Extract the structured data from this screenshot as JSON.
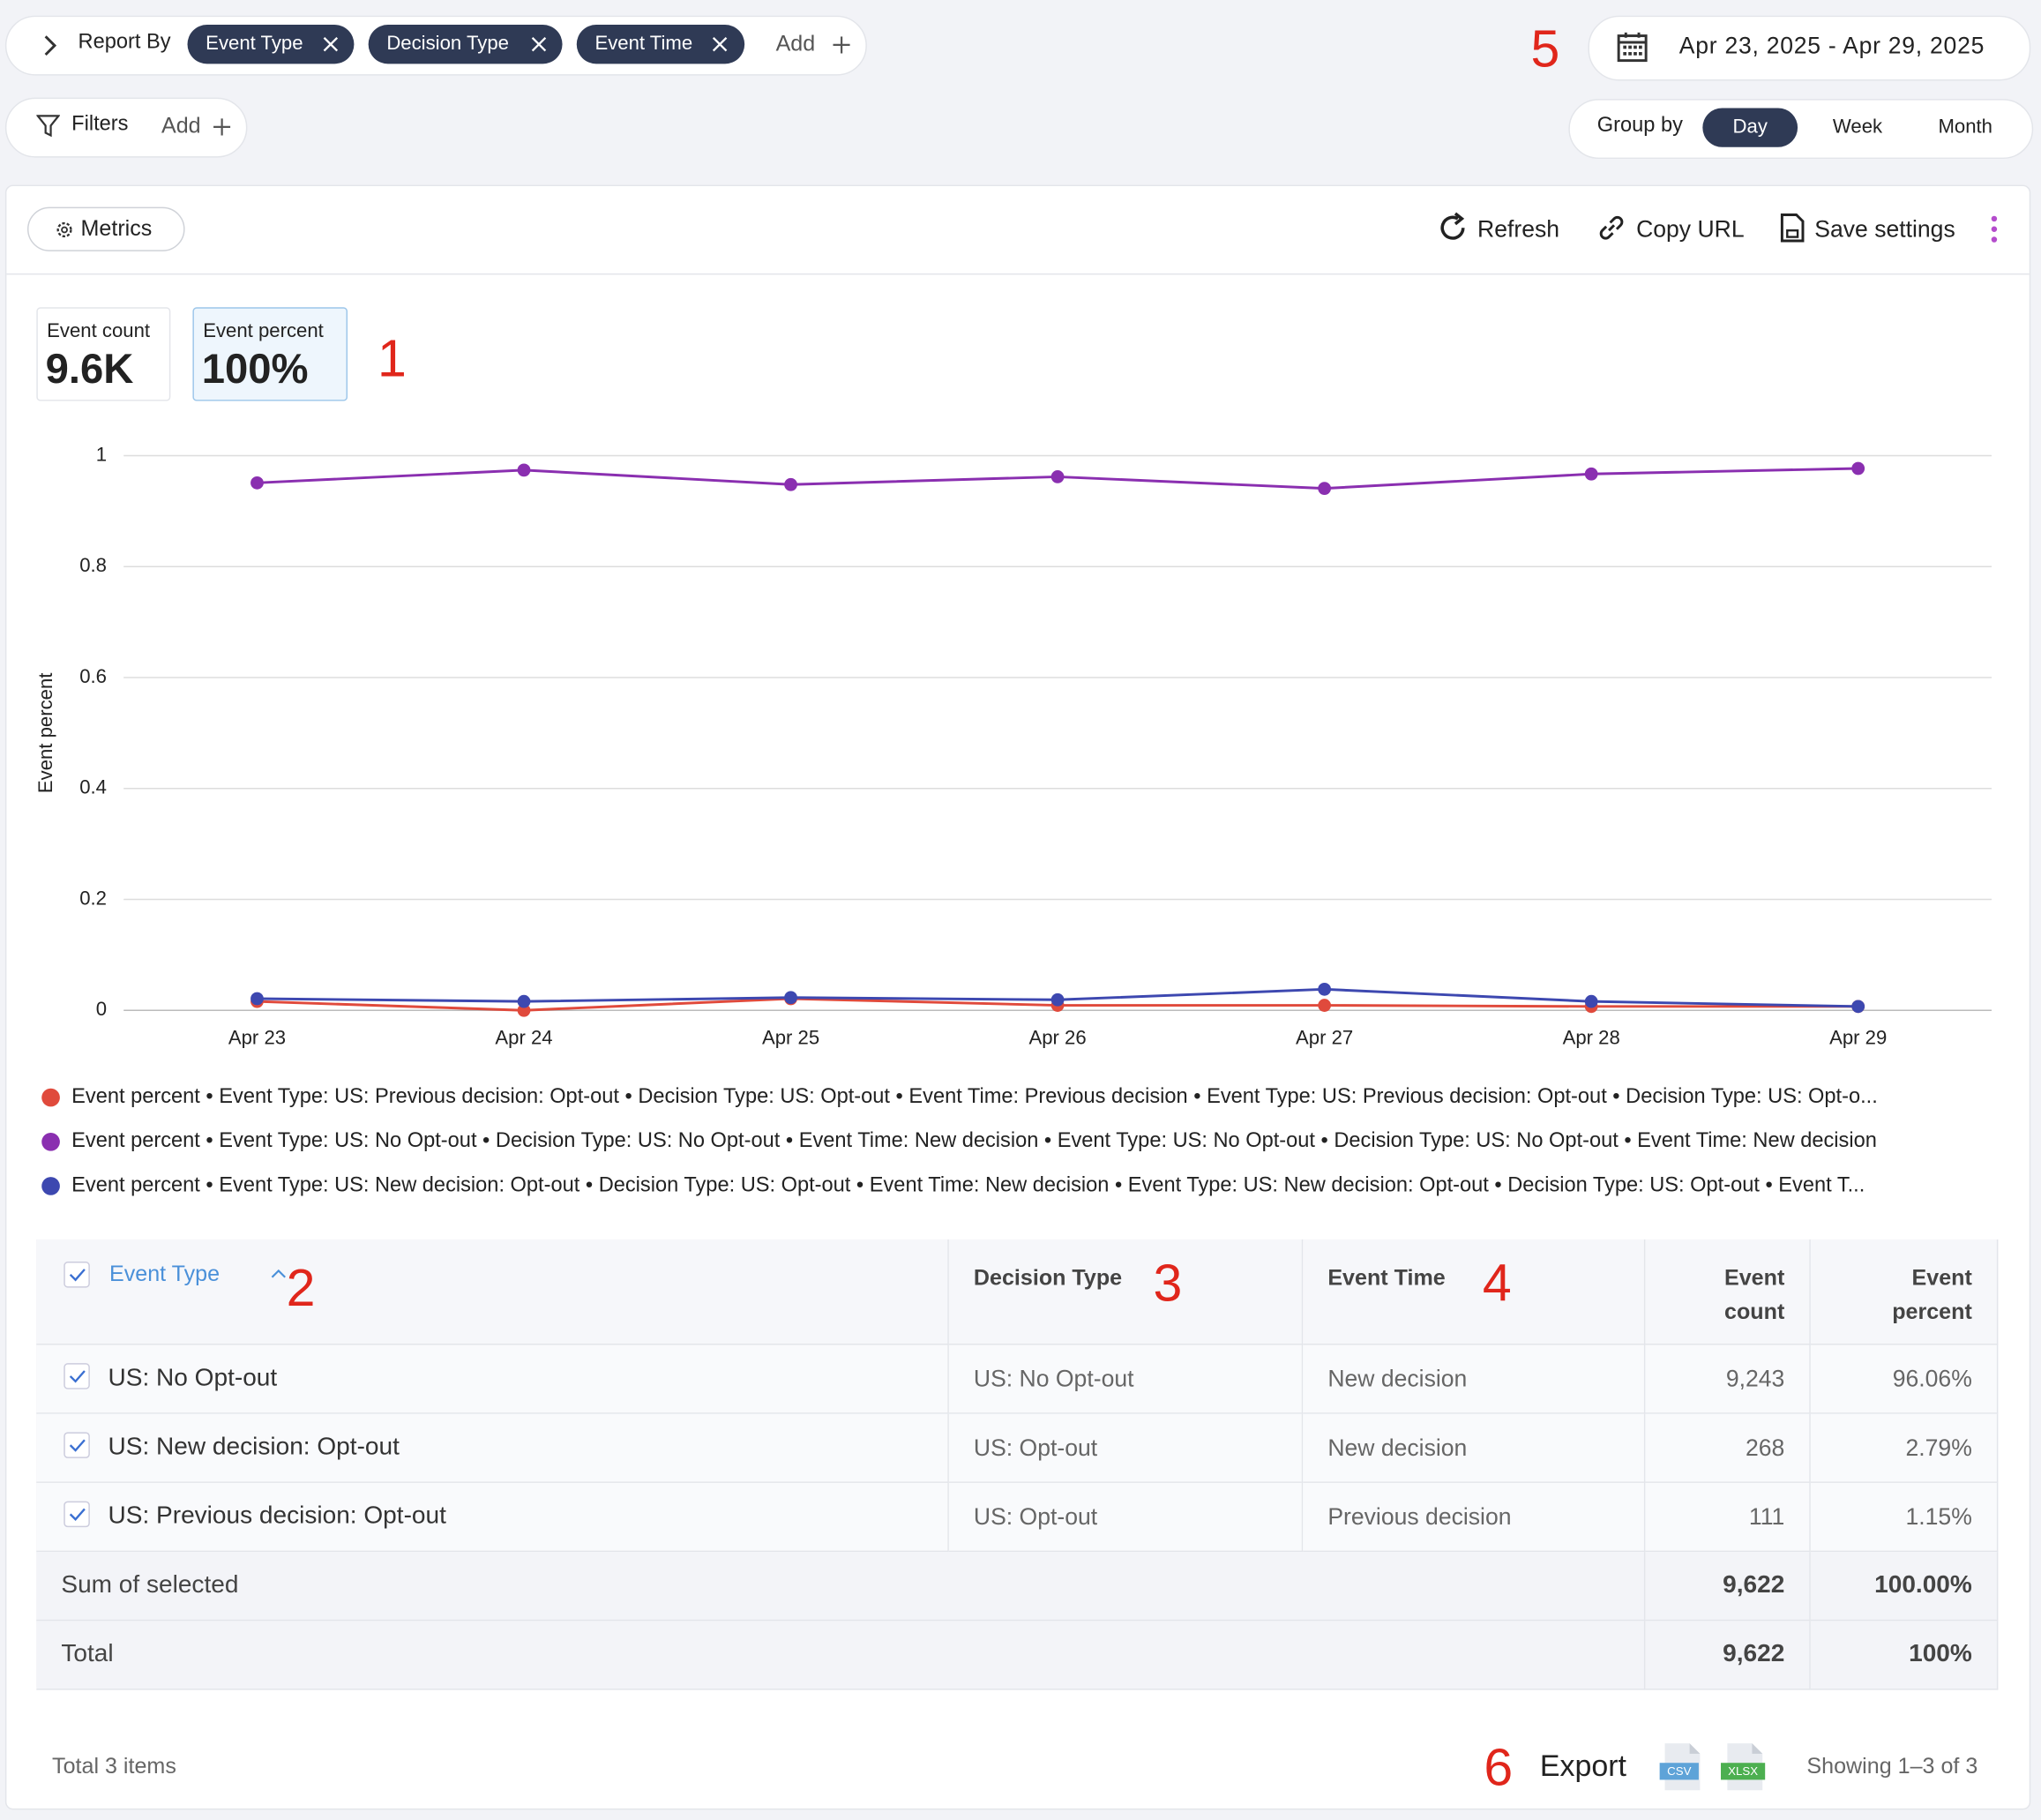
{
  "header": {
    "report_by": "Report By",
    "report_chips": [
      "Event Type",
      "Decision Type",
      "Event Time"
    ],
    "report_add": "Add",
    "date_range": "Apr 23, 2025 - Apr 29, 2025",
    "filters": "Filters",
    "filters_add": "Add",
    "group_by": "Group by",
    "group_options": [
      "Day",
      "Week",
      "Month"
    ]
  },
  "toolbar": {
    "metrics": "Metrics",
    "refresh": "Refresh",
    "copy_url": "Copy URL",
    "save_settings": "Save settings"
  },
  "kpis": [
    {
      "label": "Event count",
      "value": "9.6K"
    },
    {
      "label": "Event percent",
      "value": "100%"
    }
  ],
  "chart_data": {
    "type": "line",
    "y_label": "Event percent",
    "categories": [
      "Apr 23",
      "Apr 24",
      "Apr 25",
      "Apr 26",
      "Apr 27",
      "Apr 28",
      "Apr 29"
    ],
    "ylim": [
      0,
      1
    ],
    "yticks": [
      0,
      0.2,
      0.4,
      0.6,
      0.8,
      1
    ],
    "grid": true,
    "series": [
      {
        "name": "Event percent • Event Type: US: Previous decision: Opt-out • Decision Type: US: Opt-out • Event Time: Previous decision • Event Type: US: Previous decision: Opt-out • Decision Type: US: Opt-o...",
        "color": "#e04a3c",
        "values": [
          0.016,
          0.0,
          0.021,
          0.009,
          0.009,
          0.007,
          0.007
        ]
      },
      {
        "name": "Event percent • Event Type: US: No Opt-out • Decision Type: US: No Opt-out • Event Time: New decision • Event Type: US: No Opt-out • Decision Type: US: No Opt-out • Event Time: New decision",
        "color": "#8a2fb0",
        "values": [
          0.951,
          0.974,
          0.948,
          0.962,
          0.941,
          0.967,
          0.977
        ]
      },
      {
        "name": "Event percent • Event Type: US: New decision: Opt-out • Decision Type: US: Opt-out • Event Time: New decision • Event Type: US: New decision: Opt-out • Decision Type: US: Opt-out • Event T...",
        "color": "#3d48b0",
        "values": [
          0.021,
          0.016,
          0.023,
          0.019,
          0.038,
          0.016,
          0.007
        ]
      }
    ]
  },
  "table": {
    "columns": [
      "Event Type",
      "Decision Type",
      "Event Time",
      "Event count",
      "Event percent"
    ],
    "rows": [
      [
        "US: No Opt-out",
        "US: No Opt-out",
        "New decision",
        "9,243",
        "96.06%"
      ],
      [
        "US: New decision: Opt-out",
        "US: Opt-out",
        "New decision",
        "268",
        "2.79%"
      ],
      [
        "US: Previous decision: Opt-out",
        "US: Opt-out",
        "Previous decision",
        "111",
        "1.15%"
      ]
    ],
    "sum_row": [
      "Sum of selected",
      "9,622",
      "100.00%"
    ],
    "total_row": [
      "Total",
      "9,622",
      "100%"
    ]
  },
  "footer": {
    "total_items": "Total 3 items",
    "export": "Export",
    "csv": "CSV",
    "xlsx": "XLSX",
    "showing": "Showing 1–3 of 3"
  },
  "annotations": [
    "1",
    "2",
    "3",
    "4",
    "5",
    "6"
  ]
}
